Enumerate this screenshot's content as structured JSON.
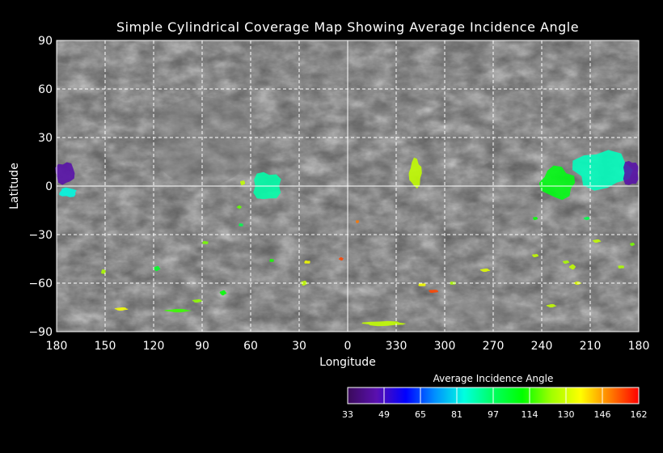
{
  "title": "Simple Cylindrical Coverage Map Showing Average Incidence Angle",
  "chart_data": {
    "type": "map",
    "projection": "simple cylindrical",
    "xlabel": "Longitude",
    "ylabel": "Latitude",
    "x_tick_labels": [
      "180",
      "150",
      "120",
      "90",
      "60",
      "30",
      "0",
      "330",
      "300",
      "270",
      "240",
      "210",
      "180"
    ],
    "y_tick_labels": [
      "90",
      "60",
      "30",
      "0",
      "−30",
      "−60",
      "−90"
    ],
    "grid": true,
    "colorbar": {
      "title": "Average Incidence Angle",
      "min": 33,
      "max": 162,
      "tick_labels": [
        "33",
        "49",
        "65",
        "81",
        "97",
        "114",
        "130",
        "146",
        "162"
      ],
      "colors": [
        "#3a0a5a",
        "#5a10b0",
        "#0000ff",
        "#0090ff",
        "#00ffe0",
        "#00ff60",
        "#00ff00",
        "#a0ff00",
        "#ffff00",
        "#ff8000",
        "#ff0000"
      ]
    },
    "coverage_patches": [
      {
        "lon": 175,
        "lat": 8,
        "dlon": 12,
        "dlat": 14,
        "angle": 45
      },
      {
        "lon": 173,
        "lat": -4,
        "dlon": 11,
        "dlat": 6,
        "angle": 84
      },
      {
        "lon": 50,
        "lat": 0,
        "dlon": 18,
        "dlat": 18,
        "angle": 90
      },
      {
        "lon": 318,
        "lat": 8,
        "dlon": 8,
        "dlat": 18,
        "angle": 128
      },
      {
        "lon": 230,
        "lat": 2,
        "dlon": 22,
        "dlat": 20,
        "angle": 108
      },
      {
        "lon": 203,
        "lat": 10,
        "dlon": 36,
        "dlat": 24,
        "angle": 88
      },
      {
        "lon": 185,
        "lat": 8,
        "dlon": 10,
        "dlat": 16,
        "angle": 45
      },
      {
        "lon": 338,
        "lat": -85,
        "dlon": 26,
        "dlat": 3,
        "angle": 128
      },
      {
        "lon": 275,
        "lat": -52,
        "dlon": 6,
        "dlat": 2,
        "angle": 132
      },
      {
        "lon": 307,
        "lat": -65,
        "dlon": 6,
        "dlat": 2,
        "angle": 155
      },
      {
        "lon": 314,
        "lat": -61,
        "dlon": 5,
        "dlat": 2,
        "angle": 135
      },
      {
        "lon": 295,
        "lat": -60,
        "dlon": 4,
        "dlat": 2,
        "angle": 125
      },
      {
        "lon": 105,
        "lat": -77,
        "dlon": 16,
        "dlat": 2,
        "angle": 115
      },
      {
        "lon": 140,
        "lat": -76,
        "dlon": 8,
        "dlat": 2,
        "angle": 135
      },
      {
        "lon": 93,
        "lat": -71,
        "dlon": 6,
        "dlat": 2,
        "angle": 122
      },
      {
        "lon": 77,
        "lat": -66,
        "dlon": 4,
        "dlat": 3,
        "angle": 110
      },
      {
        "lon": 118,
        "lat": -51,
        "dlon": 4,
        "dlat": 3,
        "angle": 105
      },
      {
        "lon": 151,
        "lat": -53,
        "dlon": 3,
        "dlat": 3,
        "angle": 125
      },
      {
        "lon": 88,
        "lat": -35,
        "dlon": 4,
        "dlat": 2,
        "angle": 120
      },
      {
        "lon": 66,
        "lat": -24,
        "dlon": 3,
        "dlat": 2,
        "angle": 100
      },
      {
        "lon": 65,
        "lat": 2,
        "dlon": 3,
        "dlat": 3,
        "angle": 128
      },
      {
        "lon": 67,
        "lat": -13,
        "dlon": 3,
        "dlat": 2,
        "angle": 118
      },
      {
        "lon": 27,
        "lat": -60,
        "dlon": 4,
        "dlat": 3,
        "angle": 128
      },
      {
        "lon": 47,
        "lat": -46,
        "dlon": 3,
        "dlat": 2,
        "angle": 112
      },
      {
        "lon": 25,
        "lat": -47,
        "dlon": 4,
        "dlat": 2,
        "angle": 135
      },
      {
        "lon": 244,
        "lat": -43,
        "dlon": 4,
        "dlat": 2,
        "angle": 128
      },
      {
        "lon": 234,
        "lat": -74,
        "dlon": 6,
        "dlat": 2,
        "angle": 128
      },
      {
        "lon": 225,
        "lat": -47,
        "dlon": 4,
        "dlat": 2,
        "angle": 125
      },
      {
        "lon": 221,
        "lat": -50,
        "dlon": 4,
        "dlat": 3,
        "angle": 128
      },
      {
        "lon": 218,
        "lat": -60,
        "dlon": 5,
        "dlat": 2,
        "angle": 132
      },
      {
        "lon": 206,
        "lat": -34,
        "dlon": 5,
        "dlat": 2,
        "angle": 128
      },
      {
        "lon": 191,
        "lat": -50,
        "dlon": 4,
        "dlat": 2,
        "angle": 125
      },
      {
        "lon": 184,
        "lat": -36,
        "dlon": 3,
        "dlat": 2,
        "angle": 120
      },
      {
        "lon": 244,
        "lat": -20,
        "dlon": 3,
        "dlat": 2,
        "angle": 110
      },
      {
        "lon": 212,
        "lat": -20,
        "dlon": 4,
        "dlat": 2,
        "angle": 100
      },
      {
        "lon": 4,
        "lat": -45,
        "dlon": 3,
        "dlat": 2,
        "angle": 155
      },
      {
        "lon": 354,
        "lat": -22,
        "dlon": 2,
        "dlat": 2,
        "angle": 150
      }
    ]
  }
}
